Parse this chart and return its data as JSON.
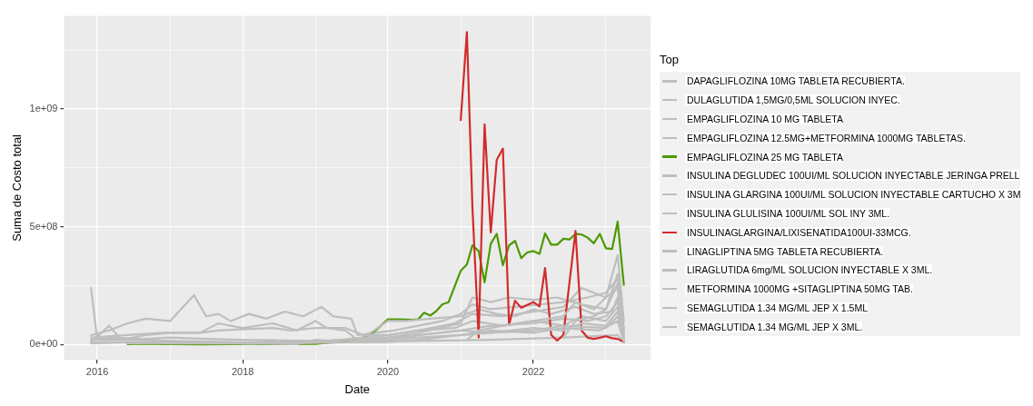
{
  "chart_data": {
    "type": "line",
    "xlabel": "Date",
    "ylabel": "Suma de Costo total",
    "legend_title": "Top",
    "legend": "right",
    "grid": true,
    "marker": "none",
    "line_style": "solid",
    "xlim": [
      "2015-07-18",
      "2023-08-13"
    ],
    "xticks": [
      {
        "value": "2016",
        "label": "2016"
      },
      {
        "value": "2017",
        "label": null
      },
      {
        "value": "2018",
        "label": "2018"
      },
      {
        "value": "2019",
        "label": null
      },
      {
        "value": "2020",
        "label": "2020"
      },
      {
        "value": "2021",
        "label": null
      },
      {
        "value": "2022",
        "label": "2022"
      },
      {
        "value": "2023",
        "label": null
      }
    ],
    "ylim": [
      -65000000,
      1395000000
    ],
    "yticks": [
      {
        "value": 0,
        "label": "0e+00"
      },
      {
        "value": 250000000,
        "label": null
      },
      {
        "value": 500000000,
        "label": "5e+08"
      },
      {
        "value": 750000000,
        "label": null
      },
      {
        "value": 1000000000,
        "label": "1e+09"
      },
      {
        "value": 1250000000,
        "label": null
      }
    ],
    "series": [
      {
        "name": "DAPAGLIFLOZINA 10MG TABLETA RECUBIERTA.",
        "color": "#bebebe",
        "x": [
          "2015-12",
          "2016-03",
          "2016-06",
          "2016-09",
          "2017-01",
          "2017-05",
          "2017-07",
          "2017-09",
          "2017-11",
          "2018-02",
          "2018-05",
          "2018-08",
          "2018-11",
          "2019-02",
          "2019-04",
          "2019-07",
          "2019-08",
          "2019-11",
          "2020-02",
          "2020-06",
          "2020-10",
          "2021-01",
          "2021-03",
          "2021-06",
          "2021-10",
          "2022-02",
          "2022-06",
          "2022-10",
          "2023-01",
          "2023-03",
          "2023-04"
        ],
        "values": [
          40000000,
          60000000,
          90000000,
          110000000,
          100000000,
          210000000,
          120000000,
          130000000,
          100000000,
          130000000,
          110000000,
          140000000,
          120000000,
          160000000,
          120000000,
          110000000,
          40000000,
          50000000,
          60000000,
          80000000,
          100000000,
          130000000,
          170000000,
          150000000,
          160000000,
          170000000,
          180000000,
          200000000,
          220000000,
          280000000,
          50000000
        ]
      },
      {
        "name": "DULAGLUTIDA 1,5MG/0,5ML SOLUCION INYEC.",
        "color": "#bebebe",
        "x": [
          "2015-12",
          "2016-01",
          "2016-06",
          "2017-01",
          "2018-01",
          "2019-01",
          "2019-06",
          "2020-01",
          "2020-06",
          "2020-12",
          "2021-03",
          "2021-08",
          "2022-01",
          "2022-06",
          "2022-09",
          "2023-01",
          "2023-03",
          "2023-04"
        ],
        "values": [
          240000000,
          20000000,
          20000000,
          15000000,
          10000000,
          10000000,
          20000000,
          40000000,
          60000000,
          90000000,
          130000000,
          120000000,
          140000000,
          160000000,
          240000000,
          200000000,
          240000000,
          20000000
        ]
      },
      {
        "name": "EMPAGLIFLOZINA 10 MG TABLETA",
        "color": "#bebebe",
        "x": [
          "2015-12",
          "2016-03",
          "2016-05",
          "2016-09",
          "2017-01",
          "2017-06",
          "2017-09",
          "2018-01",
          "2018-06",
          "2018-10",
          "2019-01",
          "2019-03",
          "2019-06",
          "2019-08",
          "2020-01",
          "2020-06",
          "2021-01",
          "2021-03",
          "2021-06",
          "2021-09",
          "2022-01",
          "2022-05",
          "2022-09",
          "2023-01",
          "2023-03",
          "2023-04"
        ],
        "values": [
          10000000,
          80000000,
          20000000,
          40000000,
          50000000,
          50000000,
          90000000,
          70000000,
          90000000,
          60000000,
          100000000,
          70000000,
          60000000,
          20000000,
          30000000,
          50000000,
          90000000,
          200000000,
          180000000,
          200000000,
          190000000,
          200000000,
          170000000,
          150000000,
          300000000,
          70000000
        ]
      },
      {
        "name": "EMPAGLIFLOZINA 12.5MG+METFORMINA 1000MG TABLETAS.",
        "color": "#bebebe",
        "x": [
          "2019-01",
          "2019-06",
          "2020-01",
          "2020-06",
          "2021-01",
          "2021-06",
          "2022-01",
          "2022-06",
          "2022-10",
          "2023-01",
          "2023-03",
          "2023-04"
        ],
        "values": [
          5000000,
          10000000,
          20000000,
          40000000,
          60000000,
          80000000,
          90000000,
          110000000,
          100000000,
          120000000,
          180000000,
          30000000
        ]
      },
      {
        "name": "EMPAGLIFLOZINA 25 MG TABLETA",
        "color": "#4c9900",
        "x": [
          "2016-06",
          "2016-09",
          "2017-01",
          "2017-06",
          "2018-06",
          "2019-01",
          "2019-06",
          "2019-09",
          "2019-11",
          "2020-01",
          "2020-03",
          "2020-05",
          "2020-06",
          "2020-07",
          "2020-08",
          "2020-09",
          "2020-10",
          "2020-11",
          "2020-12",
          "2021-01",
          "2021-02",
          "2021-03",
          "2021-04",
          "2021-05",
          "2021-06",
          "2021-07",
          "2021-08",
          "2021-09",
          "2021-10",
          "2021-11",
          "2021-12",
          "2022-01",
          "2022-02",
          "2022-03",
          "2022-04",
          "2022-05",
          "2022-06",
          "2022-07",
          "2022-08",
          "2022-09",
          "2022-10",
          "2022-11",
          "2022-12",
          "2023-01",
          "2023-02",
          "2023-03",
          "2023-04"
        ],
        "values": [
          2000000,
          4000000,
          2000000,
          1000000,
          2000000,
          3000000,
          15000000,
          30000000,
          60000000,
          107000000,
          107000000,
          105000000,
          107000000,
          135000000,
          123000000,
          143000000,
          171000000,
          180000000,
          246000000,
          313000000,
          340000000,
          421000000,
          397000000,
          264000000,
          428000000,
          470000000,
          337000000,
          421000000,
          440000000,
          367000000,
          391000000,
          397000000,
          385000000,
          472000000,
          424000000,
          424000000,
          449000000,
          446000000,
          470000000,
          467000000,
          454000000,
          430000000,
          470000000,
          409000000,
          406000000,
          522000000,
          253000000
        ]
      },
      {
        "name": "INSULINA DEGLUDEC 100UI/ML SOLUCION INYECTABLE JERINGA PRELL",
        "color": "#bebebe",
        "x": [
          "2016-06",
          "2017-01",
          "2018-01",
          "2019-01",
          "2019-09",
          "2020-01",
          "2020-04",
          "2020-08",
          "2021-01",
          "2021-04",
          "2021-07",
          "2021-10",
          "2022-01",
          "2022-04",
          "2022-08",
          "2022-11",
          "2023-02",
          "2023-03",
          "2023-04"
        ],
        "values": [
          5000000,
          8000000,
          6000000,
          10000000,
          30000000,
          100000000,
          100000000,
          110000000,
          120000000,
          150000000,
          130000000,
          120000000,
          150000000,
          130000000,
          160000000,
          130000000,
          140000000,
          200000000,
          40000000
        ]
      },
      {
        "name": "INSULINA GLARGINA 100UI/ML SOLUCION INYECTABLE CARTUCHO X 3M",
        "color": "#bebebe",
        "x": [
          "2015-12",
          "2016-06",
          "2016-12",
          "2017-06",
          "2017-09",
          "2018-06",
          "2018-09",
          "2019-01",
          "2019-06",
          "2019-09",
          "2020-01",
          "2020-06",
          "2020-12",
          "2021-03",
          "2021-08",
          "2022-01",
          "2022-06",
          "2022-09",
          "2023-01",
          "2023-03",
          "2023-04"
        ],
        "values": [
          30000000,
          40000000,
          50000000,
          50000000,
          60000000,
          70000000,
          60000000,
          70000000,
          70000000,
          40000000,
          40000000,
          60000000,
          70000000,
          100000000,
          80000000,
          100000000,
          80000000,
          120000000,
          100000000,
          160000000,
          20000000
        ]
      },
      {
        "name": "INSULINA GLULISINA 100UI/ML SOL INY 3ML.",
        "color": "#bebebe",
        "x": [
          "2015-12",
          "2016-06",
          "2017-06",
          "2018-06",
          "2019-06",
          "2020-06",
          "2021-06",
          "2022-06",
          "2023-03",
          "2023-04"
        ],
        "values": [
          10000000,
          10000000,
          8000000,
          6000000,
          10000000,
          15000000,
          20000000,
          30000000,
          40000000,
          10000000
        ]
      },
      {
        "name": "INSULINAGLARGINA/LIXISENATIDA100UI-33MCG.",
        "color": "#d22b2b",
        "x": [
          "2021-01",
          "2021-02",
          "2021-03",
          "2021-04",
          "2021-05",
          "2021-06",
          "2021-07",
          "2021-08",
          "2021-09",
          "2021-10",
          "2021-11",
          "2021-12",
          "2022-01",
          "2022-02",
          "2022-03",
          "2022-04",
          "2022-05",
          "2022-06",
          "2022-07",
          "2022-08",
          "2022-09",
          "2022-10",
          "2022-11",
          "2022-12",
          "2023-01",
          "2023-02",
          "2023-03",
          "2023-04"
        ],
        "values": [
          953000000,
          1327000000,
          580000000,
          30000000,
          935000000,
          476000000,
          784000000,
          832000000,
          83000000,
          186000000,
          156000000,
          168000000,
          180000000,
          162000000,
          325000000,
          41000000,
          17000000,
          41000000,
          258000000,
          482000000,
          59000000,
          29000000,
          24000000,
          29000000,
          35000000,
          27000000,
          24000000,
          11000000
        ]
      },
      {
        "name": "LINAGLIPTINA 5MG TABLETA RECUBIERTA.",
        "color": "#bebebe",
        "x": [
          "2015-12",
          "2016-04",
          "2016-10",
          "2017-04",
          "2018-01",
          "2018-10",
          "2019-01",
          "2019-06",
          "2020-01",
          "2020-06",
          "2021-01",
          "2021-06",
          "2022-01",
          "2022-06",
          "2022-12",
          "2023-03",
          "2023-04"
        ],
        "values": [
          20000000,
          30000000,
          20000000,
          10000000,
          5000000,
          2000000,
          20000000,
          10000000,
          20000000,
          30000000,
          40000000,
          60000000,
          50000000,
          70000000,
          60000000,
          100000000,
          10000000
        ]
      },
      {
        "name": "LIRAGLUTIDA 6mg/ML  SOLUCION INYECTABLE  X 3ML.",
        "color": "#bebebe",
        "x": [
          "2015-12",
          "2016-06",
          "2017-01",
          "2018-03",
          "2018-06",
          "2018-07",
          "2019-06",
          "2020-01",
          "2020-06",
          "2021-01",
          "2021-06",
          "2022-01",
          "2022-06",
          "2023-01",
          "2023-03",
          "2023-04"
        ],
        "values": [
          5000000,
          10000000,
          5000000,
          4000000,
          20000000,
          5000000,
          10000000,
          10000000,
          20000000,
          40000000,
          50000000,
          60000000,
          80000000,
          70000000,
          120000000,
          20000000
        ]
      },
      {
        "name": "METFORMINA 1000MG +SITAGLIPTINA 50MG TAB.",
        "color": "#bebebe",
        "x": [
          "2015-12",
          "2016-06",
          "2017-01",
          "2017-06",
          "2018-01",
          "2019-01",
          "2019-06",
          "2020-01",
          "2020-06",
          "2021-01",
          "2021-06",
          "2022-01",
          "2022-06",
          "2022-09",
          "2023-01",
          "2023-03",
          "2023-04"
        ],
        "values": [
          20000000,
          20000000,
          30000000,
          25000000,
          20000000,
          15000000,
          20000000,
          30000000,
          40000000,
          60000000,
          50000000,
          70000000,
          60000000,
          90000000,
          80000000,
          140000000,
          30000000
        ]
      },
      {
        "name": "SEMAGLUTIDA 1.34 MG/ML JEP X 1.5ML",
        "color": "#bebebe",
        "x": [
          "2021-02",
          "2021-04",
          "2021-08",
          "2022-01",
          "2022-06",
          "2022-08",
          "2022-11",
          "2023-01",
          "2023-03",
          "2023-04"
        ],
        "values": [
          20000000,
          60000000,
          80000000,
          100000000,
          120000000,
          180000000,
          150000000,
          200000000,
          380000000,
          100000000
        ]
      },
      {
        "name": "SEMAGLUTIDA 1.34 MG/ML JEP X 3ML.",
        "color": "#bebebe",
        "x": [
          "2022-06",
          "2022-08",
          "2022-11",
          "2023-01",
          "2023-03",
          "2023-04"
        ],
        "values": [
          30000000,
          100000000,
          120000000,
          150000000,
          260000000,
          60000000
        ]
      }
    ]
  }
}
